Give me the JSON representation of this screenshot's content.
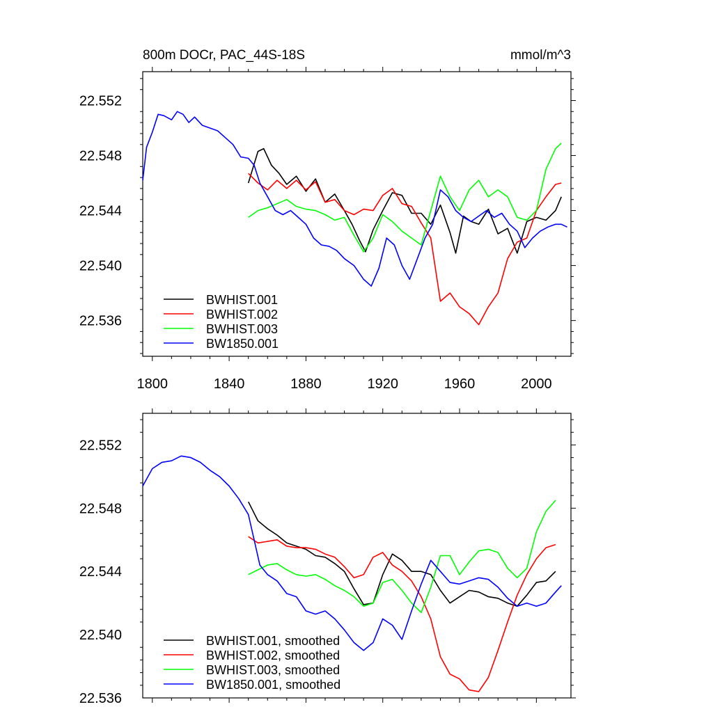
{
  "chart_data": [
    {
      "type": "line",
      "title": "800m DOCr, PAC_44S-18S",
      "units": "mmol/m^3",
      "xlim": [
        1795,
        2018
      ],
      "ylim": [
        22.5334,
        22.5541
      ],
      "x_ticks": [
        1800,
        1840,
        1880,
        1920,
        1960,
        2000
      ],
      "y_ticks": [
        22.536,
        22.54,
        22.544,
        22.548,
        22.552
      ],
      "y_tick_labels": [
        "22.536",
        "22.540",
        "22.544",
        "22.548",
        "22.552"
      ],
      "legend_placement": "bottom-left",
      "series": [
        {
          "name": "BWHIST.001",
          "color": "#000000",
          "x": [
            1850,
            1855,
            1858,
            1862,
            1866,
            1870,
            1875,
            1880,
            1885,
            1890,
            1895,
            1900,
            1904,
            1908,
            1911,
            1915,
            1920,
            1925,
            1930,
            1935,
            1940,
            1945,
            1950,
            1955,
            1958,
            1962,
            1966,
            1970,
            1975,
            1980,
            1985,
            1990,
            1995,
            2000,
            2005,
            2010,
            2013
          ],
          "y": [
            22.546,
            22.5483,
            22.5485,
            22.5473,
            22.5467,
            22.5459,
            22.5465,
            22.5454,
            22.5463,
            22.5446,
            22.5452,
            22.544,
            22.543,
            22.5418,
            22.541,
            22.5426,
            22.544,
            22.5453,
            22.5451,
            22.5438,
            22.5438,
            22.543,
            22.5444,
            22.5424,
            22.5409,
            22.5436,
            22.5432,
            22.543,
            22.5441,
            22.5423,
            22.5427,
            22.5409,
            22.5432,
            22.5435,
            22.5433,
            22.544,
            22.545
          ]
        },
        {
          "name": "BWHIST.002",
          "color": "#ff0000",
          "x": [
            1850,
            1855,
            1860,
            1865,
            1870,
            1875,
            1880,
            1885,
            1890,
            1895,
            1900,
            1905,
            1910,
            1915,
            1920,
            1925,
            1930,
            1935,
            1940,
            1945,
            1950,
            1955,
            1960,
            1965,
            1970,
            1975,
            1980,
            1985,
            1990,
            1995,
            2000,
            2005,
            2010,
            2013
          ],
          "y": [
            22.5467,
            22.546,
            22.5455,
            22.5462,
            22.5456,
            22.5462,
            22.5455,
            22.5461,
            22.5446,
            22.5448,
            22.544,
            22.5437,
            22.5441,
            22.544,
            22.5451,
            22.5456,
            22.5445,
            22.5443,
            22.5431,
            22.542,
            22.5374,
            22.538,
            22.537,
            22.5365,
            22.5357,
            22.537,
            22.538,
            22.5405,
            22.5417,
            22.542,
            22.544,
            22.545,
            22.5459,
            22.546
          ]
        },
        {
          "name": "BWHIST.003",
          "color": "#00ff00",
          "x": [
            1850,
            1855,
            1860,
            1865,
            1870,
            1875,
            1880,
            1885,
            1890,
            1895,
            1900,
            1905,
            1910,
            1915,
            1920,
            1925,
            1930,
            1935,
            1940,
            1945,
            1950,
            1955,
            1960,
            1965,
            1970,
            1975,
            1980,
            1985,
            1990,
            1995,
            2000,
            2005,
            2010,
            2013
          ],
          "y": [
            22.5435,
            22.544,
            22.5442,
            22.5445,
            22.5448,
            22.5443,
            22.5441,
            22.544,
            22.5437,
            22.5433,
            22.5435,
            22.5422,
            22.541,
            22.542,
            22.5437,
            22.5432,
            22.5425,
            22.542,
            22.5415,
            22.544,
            22.5465,
            22.545,
            22.544,
            22.5455,
            22.5462,
            22.545,
            22.5455,
            22.545,
            22.5435,
            22.5433,
            22.544,
            22.547,
            22.5485,
            22.5489
          ]
        },
        {
          "name": "BW1850.001",
          "color": "#0000ff",
          "x": [
            1795,
            1797,
            1800,
            1803,
            1806,
            1810,
            1813,
            1816,
            1819,
            1822,
            1826,
            1830,
            1834,
            1838,
            1842,
            1846,
            1850,
            1853,
            1856,
            1860,
            1864,
            1868,
            1872,
            1876,
            1880,
            1884,
            1888,
            1892,
            1896,
            1900,
            1905,
            1910,
            1914,
            1918,
            1922,
            1926,
            1930,
            1934,
            1938,
            1942,
            1946,
            1950,
            1954,
            1958,
            1962,
            1966,
            1970,
            1974,
            1978,
            1982,
            1986,
            1990,
            1994,
            1998,
            2002,
            2006,
            2010,
            2013,
            2016
          ],
          "y": [
            22.5462,
            22.5486,
            22.5497,
            22.551,
            22.5509,
            22.5506,
            22.5512,
            22.551,
            22.5504,
            22.5508,
            22.5502,
            22.55,
            22.5498,
            22.5493,
            22.5488,
            22.5479,
            22.5478,
            22.5473,
            22.546,
            22.545,
            22.544,
            22.5437,
            22.544,
            22.5435,
            22.543,
            22.542,
            22.5415,
            22.5414,
            22.5411,
            22.5405,
            22.54,
            22.539,
            22.5385,
            22.5398,
            22.542,
            22.5415,
            22.54,
            22.539,
            22.5405,
            22.542,
            22.543,
            22.5455,
            22.545,
            22.544,
            22.5435,
            22.5432,
            22.5436,
            22.544,
            22.5435,
            22.5438,
            22.543,
            22.5425,
            22.5413,
            22.542,
            22.5425,
            22.5428,
            22.543,
            22.543,
            22.5428
          ]
        }
      ]
    },
    {
      "type": "line",
      "title": "",
      "xlim": [
        1795,
        2018
      ],
      "ylim": [
        22.536,
        22.554
      ],
      "x_ticks": [
        1800,
        1840,
        1880,
        1920,
        1960,
        2000
      ],
      "y_ticks": [
        22.536,
        22.54,
        22.544,
        22.548,
        22.552
      ],
      "y_tick_labels": [
        "22.536",
        "22.540",
        "22.544",
        "22.548",
        "22.552"
      ],
      "legend_placement": "bottom-left",
      "series": [
        {
          "name": "BWHIST.001, smoothed",
          "color": "#000000",
          "x": [
            1850,
            1855,
            1860,
            1865,
            1870,
            1875,
            1880,
            1885,
            1890,
            1895,
            1900,
            1905,
            1910,
            1915,
            1920,
            1925,
            1930,
            1935,
            1940,
            1945,
            1950,
            1955,
            1960,
            1965,
            1970,
            1975,
            1980,
            1985,
            1990,
            1995,
            2000,
            2005,
            2010
          ],
          "y": [
            22.5484,
            22.5472,
            22.5467,
            22.5463,
            22.5458,
            22.5456,
            22.5454,
            22.545,
            22.5449,
            22.5445,
            22.544,
            22.5429,
            22.5419,
            22.542,
            22.5438,
            22.5451,
            22.5447,
            22.544,
            22.544,
            22.5438,
            22.5428,
            22.542,
            22.5424,
            22.5428,
            22.5427,
            22.5424,
            22.5423,
            22.542,
            22.5418,
            22.5425,
            22.5433,
            22.5434,
            22.544
          ]
        },
        {
          "name": "BWHIST.002, smoothed",
          "color": "#ff0000",
          "x": [
            1850,
            1855,
            1860,
            1865,
            1870,
            1875,
            1880,
            1885,
            1890,
            1895,
            1900,
            1905,
            1910,
            1915,
            1920,
            1925,
            1930,
            1935,
            1940,
            1945,
            1950,
            1955,
            1960,
            1965,
            1970,
            1975,
            1980,
            1985,
            1990,
            1995,
            2000,
            2005,
            2010
          ],
          "y": [
            22.5462,
            22.5458,
            22.5459,
            22.546,
            22.5456,
            22.5455,
            22.5455,
            22.5454,
            22.5451,
            22.5449,
            22.5443,
            22.5436,
            22.5438,
            22.5449,
            22.5452,
            22.5444,
            22.544,
            22.5434,
            22.5424,
            22.541,
            22.5386,
            22.5375,
            22.5372,
            22.5365,
            22.5364,
            22.5373,
            22.539,
            22.5408,
            22.5425,
            22.5438,
            22.5448,
            22.5455,
            22.5457
          ]
        },
        {
          "name": "BWHIST.003, smoothed",
          "color": "#00ff00",
          "x": [
            1850,
            1855,
            1860,
            1865,
            1870,
            1875,
            1880,
            1885,
            1890,
            1895,
            1900,
            1905,
            1910,
            1915,
            1920,
            1925,
            1930,
            1935,
            1940,
            1945,
            1950,
            1955,
            1960,
            1965,
            1970,
            1975,
            1980,
            1985,
            1990,
            1995,
            2000,
            2005,
            2010
          ],
          "y": [
            22.5438,
            22.5441,
            22.5444,
            22.5445,
            22.5441,
            22.5438,
            22.5437,
            22.5438,
            22.5435,
            22.5431,
            22.5428,
            22.5424,
            22.5418,
            22.542,
            22.5433,
            22.5435,
            22.5428,
            22.542,
            22.5414,
            22.543,
            22.545,
            22.545,
            22.5438,
            22.5446,
            22.5453,
            22.5454,
            22.5452,
            22.5442,
            22.5436,
            22.5442,
            22.5465,
            22.5478,
            22.5485
          ]
        },
        {
          "name": "BW1850.001, smoothed",
          "color": "#0000ff",
          "x": [
            1795,
            1800,
            1805,
            1810,
            1815,
            1820,
            1825,
            1830,
            1835,
            1840,
            1845,
            1850,
            1853,
            1856,
            1860,
            1865,
            1870,
            1875,
            1880,
            1885,
            1890,
            1895,
            1900,
            1905,
            1910,
            1915,
            1920,
            1925,
            1930,
            1935,
            1940,
            1945,
            1950,
            1955,
            1960,
            1965,
            1970,
            1975,
            1980,
            1985,
            1990,
            1995,
            2000,
            2005,
            2010,
            2013
          ],
          "y": [
            22.5494,
            22.5505,
            22.5509,
            22.551,
            22.5513,
            22.5512,
            22.5509,
            22.5504,
            22.55,
            22.5494,
            22.5486,
            22.5476,
            22.546,
            22.5444,
            22.5438,
            22.5434,
            22.5426,
            22.5424,
            22.5415,
            22.5413,
            22.5415,
            22.541,
            22.5403,
            22.5395,
            22.539,
            22.5395,
            22.541,
            22.5406,
            22.5397,
            22.5415,
            22.5432,
            22.5447,
            22.544,
            22.5433,
            22.5432,
            22.5434,
            22.5436,
            22.5435,
            22.543,
            22.5423,
            22.5418,
            22.542,
            22.5418,
            22.542,
            22.5427,
            22.5431
          ]
        }
      ]
    }
  ]
}
